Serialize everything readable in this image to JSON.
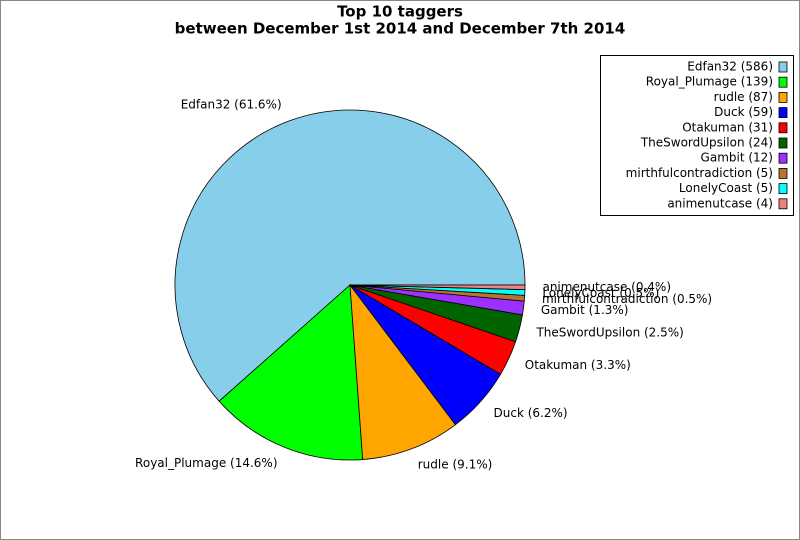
{
  "chart_data": {
    "type": "pie",
    "title": "Top 10 taggers",
    "subtitle": "between December 1st 2014 and December 7th 2014",
    "values": [
      586,
      139,
      87,
      59,
      31,
      24,
      12,
      5,
      5,
      4
    ],
    "slice_labels": [
      "Edfan32 (61.6%)",
      "Royal_Plumage (14.6%)",
      "rudle (9.1%)",
      "Duck (6.2%)",
      "Otakuman (3.3%)",
      "TheSwordUpsilon (2.5%)",
      "Gambit (1.3%)",
      "mirthfulcontradiction (0.5%)",
      "LonelyCoast (0.5%)",
      "animenutcase (0.4%)"
    ],
    "legend_labels": [
      "Edfan32 (586)",
      "Royal_Plumage (139)",
      "rudle (87)",
      "Duck (59)",
      "Otakuman (31)",
      "TheSwordUpsilon (24)",
      "Gambit (12)",
      "mirthfulcontradiction (5)",
      "LonelyCoast (5)",
      "animenutcase (4)"
    ],
    "colors": [
      "#87ceeb",
      "#00ff00",
      "#ffa500",
      "#0000ff",
      "#ff0000",
      "#006400",
      "#9b30ff",
      "#b8732e",
      "#00ffff",
      "#f08080"
    ],
    "legend": "upper right"
  }
}
